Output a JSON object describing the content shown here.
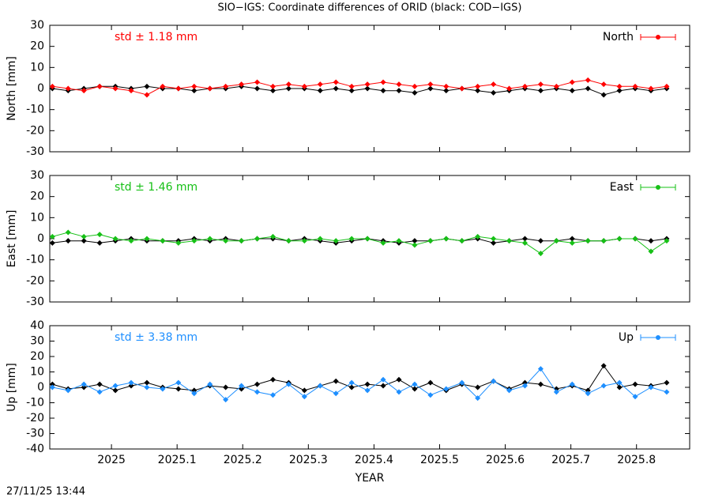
{
  "title": "SIO−IGS: Coordinate differences of ORID (black: COD−IGS)",
  "timestamp": "27/11/25 13:44",
  "chart_data": [
    {
      "type": "line",
      "ylabel": "North [mm]",
      "annotation": "std ± 1.18 mm",
      "legend": "top-right",
      "xlim": [
        2024.906,
        2025.881
      ],
      "xticks": [
        2025,
        2025.1,
        2025.2,
        2025.3,
        2025.4,
        2025.5,
        2025.6,
        2025.7,
        2025.8
      ],
      "ylim": [
        -30,
        30
      ],
      "yticks": [
        -30,
        -20,
        -10,
        0,
        10,
        20,
        30
      ],
      "x": [
        2024.91,
        2024.934,
        2024.958,
        2024.982,
        2025.006,
        2025.03,
        2025.054,
        2025.078,
        2025.102,
        2025.126,
        2025.15,
        2025.174,
        2025.198,
        2025.222,
        2025.246,
        2025.27,
        2025.294,
        2025.318,
        2025.342,
        2025.366,
        2025.39,
        2025.414,
        2025.438,
        2025.462,
        2025.486,
        2025.51,
        2025.534,
        2025.558,
        2025.582,
        2025.606,
        2025.63,
        2025.654,
        2025.678,
        2025.702,
        2025.726,
        2025.75,
        2025.774,
        2025.798,
        2025.822,
        2025.846
      ],
      "series": [
        {
          "color": "#000000",
          "values": [
            0,
            -1,
            0,
            1,
            1,
            0,
            1,
            0,
            0,
            -1,
            0,
            0,
            1,
            0,
            -1,
            0,
            0,
            -1,
            0,
            -1,
            0,
            -1,
            -1,
            -2,
            0,
            -1,
            0,
            -1,
            -2,
            -1,
            0,
            -1,
            0,
            -1,
            0,
            -3,
            -1,
            0,
            -1,
            0
          ]
        },
        {
          "name": "North",
          "color": "#ff0000",
          "values": [
            1,
            0,
            -1,
            1,
            0,
            -1,
            -3,
            1,
            0,
            1,
            0,
            1,
            2,
            3,
            1,
            2,
            1,
            2,
            3,
            1,
            2,
            3,
            2,
            1,
            2,
            1,
            0,
            1,
            2,
            0,
            1,
            2,
            1,
            3,
            4,
            2,
            1,
            1,
            0,
            1
          ]
        }
      ]
    },
    {
      "type": "line",
      "ylabel": "East [mm]",
      "annotation": "std ± 1.46 mm",
      "legend": "top-right",
      "xlim": [
        2024.906,
        2025.881
      ],
      "xticks": [
        2025,
        2025.1,
        2025.2,
        2025.3,
        2025.4,
        2025.5,
        2025.6,
        2025.7,
        2025.8
      ],
      "ylim": [
        -30,
        30
      ],
      "yticks": [
        -30,
        -20,
        -10,
        0,
        10,
        20,
        30
      ],
      "x": [
        2024.91,
        2024.934,
        2024.958,
        2024.982,
        2025.006,
        2025.03,
        2025.054,
        2025.078,
        2025.102,
        2025.126,
        2025.15,
        2025.174,
        2025.198,
        2025.222,
        2025.246,
        2025.27,
        2025.294,
        2025.318,
        2025.342,
        2025.366,
        2025.39,
        2025.414,
        2025.438,
        2025.462,
        2025.486,
        2025.51,
        2025.534,
        2025.558,
        2025.582,
        2025.606,
        2025.63,
        2025.654,
        2025.678,
        2025.702,
        2025.726,
        2025.75,
        2025.774,
        2025.798,
        2025.822,
        2025.846
      ],
      "series": [
        {
          "color": "#000000",
          "values": [
            -2,
            -1,
            -1,
            -2,
            -1,
            0,
            -1,
            -1,
            -1,
            0,
            -1,
            0,
            -1,
            0,
            0,
            -1,
            0,
            -1,
            -2,
            -1,
            0,
            -1,
            -2,
            -1,
            -1,
            0,
            -1,
            0,
            -2,
            -1,
            0,
            -1,
            -1,
            0,
            -1,
            -1,
            0,
            0,
            -1,
            0
          ]
        },
        {
          "name": "East",
          "color": "#16c016",
          "values": [
            1,
            3,
            1,
            2,
            0,
            -1,
            0,
            -1,
            -2,
            -1,
            0,
            -1,
            -1,
            0,
            1,
            -1,
            -1,
            0,
            -1,
            0,
            0,
            -2,
            -1,
            -3,
            -1,
            0,
            -1,
            1,
            0,
            -1,
            -2,
            -7,
            -1,
            -2,
            -1,
            -1,
            0,
            0,
            -6,
            -1
          ]
        }
      ]
    },
    {
      "type": "line",
      "ylabel": "Up [mm]",
      "xlabel": "YEAR",
      "annotation": "std ± 3.38 mm",
      "legend": "top-right",
      "xlim": [
        2024.906,
        2025.881
      ],
      "xticks": [
        2025,
        2025.1,
        2025.2,
        2025.3,
        2025.4,
        2025.5,
        2025.6,
        2025.7,
        2025.8
      ],
      "ylim": [
        -40,
        40
      ],
      "yticks": [
        -40,
        -30,
        -20,
        -10,
        0,
        10,
        20,
        30,
        40
      ],
      "x": [
        2024.91,
        2024.934,
        2024.958,
        2024.982,
        2025.006,
        2025.03,
        2025.054,
        2025.078,
        2025.102,
        2025.126,
        2025.15,
        2025.174,
        2025.198,
        2025.222,
        2025.246,
        2025.27,
        2025.294,
        2025.318,
        2025.342,
        2025.366,
        2025.39,
        2025.414,
        2025.438,
        2025.462,
        2025.486,
        2025.51,
        2025.534,
        2025.558,
        2025.582,
        2025.606,
        2025.63,
        2025.654,
        2025.678,
        2025.702,
        2025.726,
        2025.75,
        2025.774,
        2025.798,
        2025.822,
        2025.846
      ],
      "series": [
        {
          "color": "#000000",
          "values": [
            2,
            -1,
            0,
            2,
            -2,
            1,
            3,
            0,
            -1,
            -2,
            1,
            0,
            -1,
            2,
            5,
            3,
            -2,
            1,
            4,
            0,
            2,
            1,
            5,
            -1,
            3,
            -2,
            2,
            0,
            4,
            -1,
            3,
            2,
            -1,
            1,
            -2,
            14,
            0,
            2,
            1,
            3
          ]
        },
        {
          "name": "Up",
          "color": "#1e8fff",
          "values": [
            0,
            -2,
            2,
            -3,
            1,
            3,
            0,
            -1,
            3,
            -4,
            2,
            -8,
            1,
            -3,
            -5,
            2,
            -6,
            1,
            -4,
            3,
            -2,
            5,
            -3,
            2,
            -5,
            -1,
            3,
            -7,
            4,
            -2,
            1,
            12,
            -3,
            2,
            -4,
            1,
            3,
            -6,
            0,
            -3
          ]
        }
      ]
    }
  ]
}
